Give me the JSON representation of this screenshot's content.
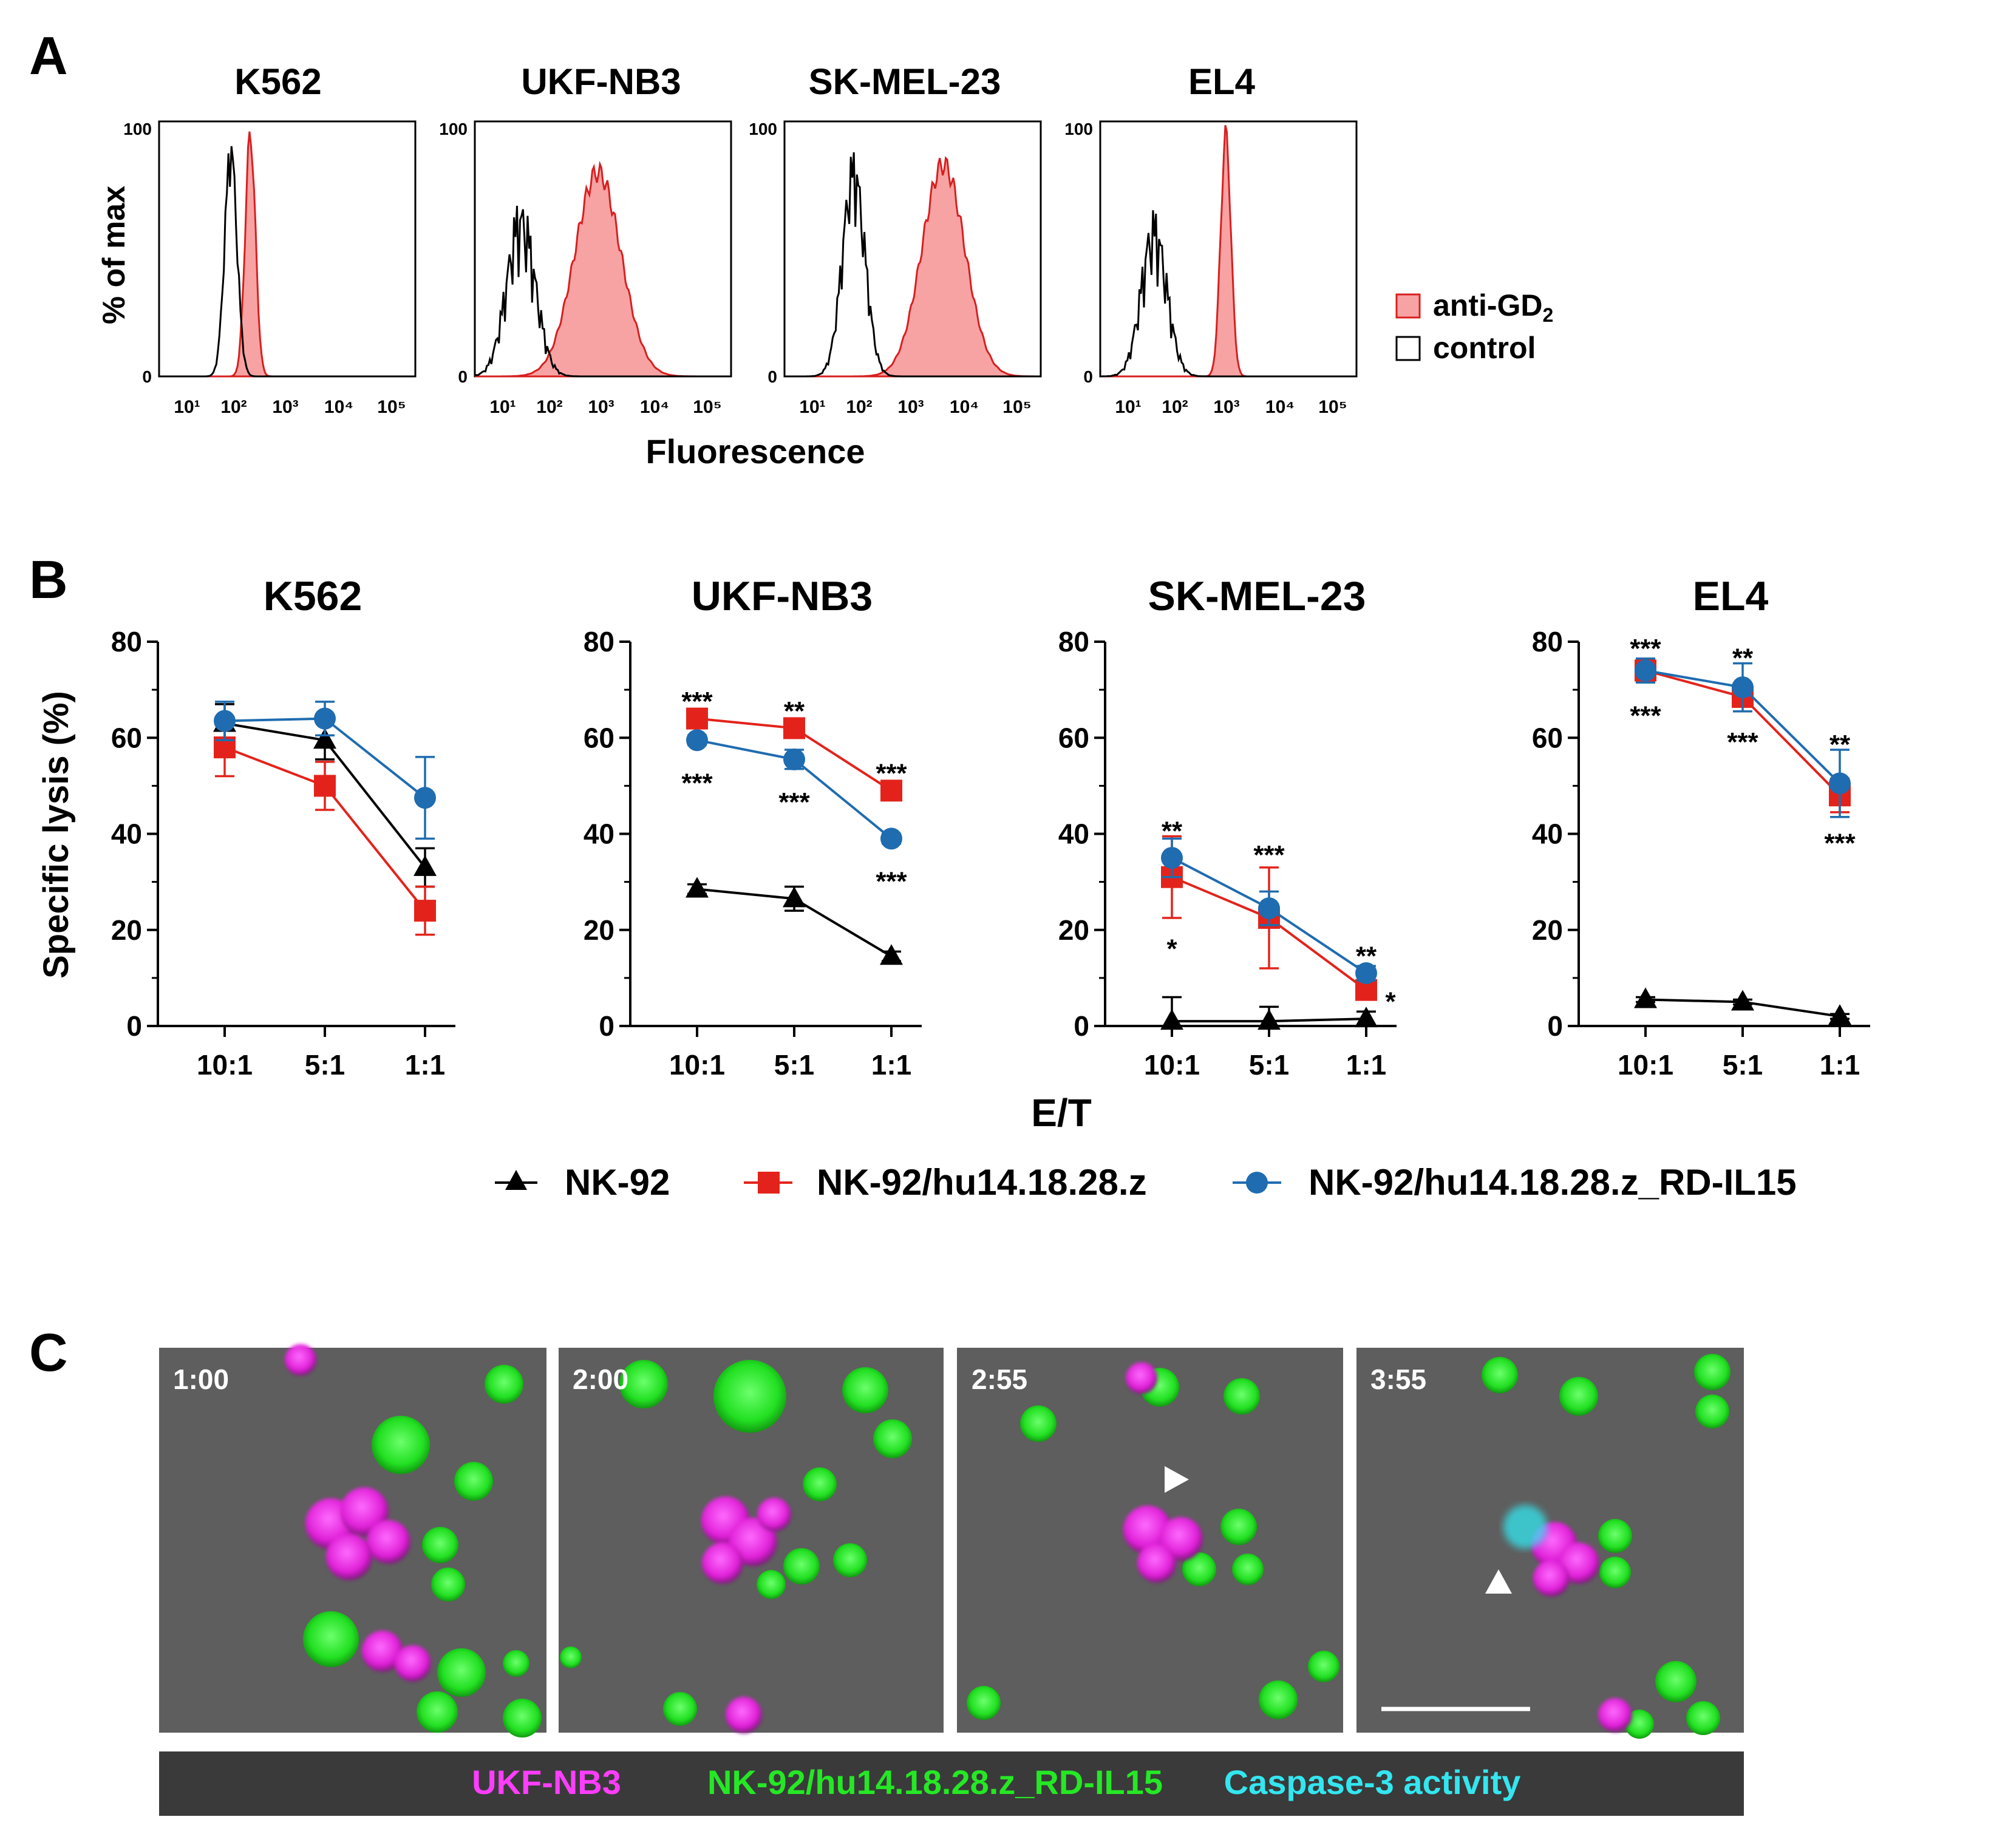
{
  "panel_labels": {
    "a": "A",
    "b": "B",
    "c": "C"
  },
  "colors": {
    "black": "#000000",
    "red": "#e3231b",
    "blue": "#1f6cb0",
    "pink_fill": "#f8a3a3",
    "red_line": "#d81f1f",
    "magenta": "#ff3dff",
    "green": "#25e825",
    "cyan": "#33e6f0",
    "legend_bar": "#3a3a3a"
  },
  "panel_a": {
    "ylabel": "% of max",
    "xlabel": "Fluorescence",
    "ytick_labels": [
      "0",
      "100"
    ],
    "xtick_labels": [
      "10¹",
      "10²",
      "10³",
      "10⁴",
      "10⁵"
    ],
    "legend": {
      "anti": "anti-GD",
      "anti_sub": "2",
      "control": "control"
    },
    "histograms": [
      {
        "title": "K562",
        "control": {
          "center": 1.9,
          "width": 0.12,
          "height": 0.9,
          "noise": 0.15
        },
        "anti": {
          "center": 2.28,
          "width": 0.1,
          "height": 0.97
        }
      },
      {
        "title": "UKF-NB3",
        "control": {
          "center": 1.4,
          "width": 0.28,
          "height": 0.6,
          "noise": 0.35
        },
        "anti": {
          "center": 2.9,
          "width": 0.45,
          "height": 0.82
        }
      },
      {
        "title": "SK-MEL-23",
        "control": {
          "center": 1.85,
          "width": 0.22,
          "height": 0.8,
          "noise": 0.25
        },
        "anti": {
          "center": 3.6,
          "width": 0.42,
          "height": 0.85
        }
      },
      {
        "title": "EL4",
        "control": {
          "center": 1.55,
          "width": 0.25,
          "height": 0.56,
          "noise": 0.35
        },
        "anti": {
          "center": 2.95,
          "width": 0.1,
          "height": 0.97
        }
      }
    ]
  },
  "chart_data": [
    {
      "type": "line",
      "title": "K562",
      "categories": [
        "10:1",
        "5:1",
        "1:1"
      ],
      "ylabel": "Specific lysis  (%)",
      "ylim": [
        0,
        80
      ],
      "series": [
        {
          "name": "NK-92",
          "values": [
            63,
            59.5,
            33
          ],
          "errors": [
            4,
            4,
            4
          ]
        },
        {
          "name": "NK-92/hu14.18.28.z",
          "values": [
            58,
            50,
            24
          ],
          "errors": [
            6,
            5,
            5
          ]
        },
        {
          "name": "NK-92/hu14.18.28.z_RD-IL15",
          "values": [
            63.5,
            64,
            47.5
          ],
          "errors": [
            4,
            3.5,
            8.5
          ]
        }
      ],
      "annotations": []
    },
    {
      "type": "line",
      "title": "UKF-NB3",
      "categories": [
        "10:1",
        "5:1",
        "1:1"
      ],
      "ylabel": "",
      "ylim": [
        0,
        80
      ],
      "series": [
        {
          "name": "NK-92",
          "values": [
            28.5,
            26.5,
            14.5
          ],
          "errors": [
            1,
            2.5,
            1
          ]
        },
        {
          "name": "NK-92/hu14.18.28.z",
          "values": [
            64,
            62,
            49
          ],
          "errors": [
            1,
            1,
            1
          ]
        },
        {
          "name": "NK-92/hu14.18.28.z_RD-IL15",
          "values": [
            59.5,
            55.5,
            39
          ],
          "errors": [
            1,
            2,
            1
          ]
        }
      ],
      "annotations": [
        {
          "i": 0,
          "y": 68,
          "text": "***"
        },
        {
          "i": 0,
          "y": 51,
          "text": "***"
        },
        {
          "i": 1,
          "y": 66,
          "text": "**"
        },
        {
          "i": 1,
          "y": 47,
          "text": "***"
        },
        {
          "i": 2,
          "y": 53,
          "text": "***"
        },
        {
          "i": 2,
          "y": 30.5,
          "text": "***"
        }
      ]
    },
    {
      "type": "line",
      "title": "SK-MEL-23",
      "categories": [
        "10:1",
        "5:1",
        "1:1"
      ],
      "ylabel": "",
      "ylim": [
        0,
        80
      ],
      "series": [
        {
          "name": "NK-92",
          "values": [
            1,
            1,
            1.5
          ],
          "errors": [
            5,
            3,
            1.5
          ]
        },
        {
          "name": "NK-92/hu14.18.28.z",
          "values": [
            31,
            22.5,
            7.5
          ],
          "errors": [
            8.5,
            10.5,
            2
          ]
        },
        {
          "name": "NK-92/hu14.18.28.z_RD-IL15",
          "values": [
            35,
            24.5,
            11
          ],
          "errors": [
            4,
            3.5,
            1.5
          ]
        }
      ],
      "annotations": [
        {
          "i": 0,
          "y": 41,
          "text": "**"
        },
        {
          "i": 0,
          "y": 16.5,
          "text": "*"
        },
        {
          "i": 1,
          "y": 36,
          "text": "***"
        },
        {
          "i": 2,
          "y": 15,
          "text": "**"
        },
        {
          "i": 2,
          "y": 5.5,
          "text": "*",
          "dx": 0.2
        }
      ]
    },
    {
      "type": "line",
      "title": "EL4",
      "categories": [
        "10:1",
        "5:1",
        "1:1"
      ],
      "ylabel": "",
      "ylim": [
        0,
        80
      ],
      "series": [
        {
          "name": "NK-92",
          "values": [
            5.5,
            5,
            2
          ],
          "errors": [
            0.5,
            0.5,
            0.5
          ]
        },
        {
          "name": "NK-92/hu14.18.28.z",
          "values": [
            74,
            68.5,
            48
          ],
          "errors": [
            1.5,
            2,
            3.5
          ]
        },
        {
          "name": "NK-92/hu14.18.28.z_RD-IL15",
          "values": [
            74,
            70.5,
            50.5
          ],
          "errors": [
            2.5,
            5,
            7
          ]
        }
      ],
      "annotations": [
        {
          "i": 0,
          "y": 79,
          "text": "***"
        },
        {
          "i": 0,
          "y": 65,
          "text": "***"
        },
        {
          "i": 1,
          "y": 77,
          "text": "**"
        },
        {
          "i": 1,
          "y": 59.5,
          "text": "***"
        },
        {
          "i": 2,
          "y": 59,
          "text": "**"
        },
        {
          "i": 2,
          "y": 38.5,
          "text": "***"
        }
      ]
    }
  ],
  "panel_b": {
    "xlabel": "E/T",
    "ytick_labels": [
      "0",
      "20",
      "40",
      "60",
      "80"
    ],
    "legend": [
      "NK-92",
      "NK-92/hu14.18.28.z",
      "NK-92/hu14.18.28.z_RD-IL15"
    ]
  },
  "panel_c": {
    "frames": [
      {
        "time": "1:00"
      },
      {
        "time": "2:00"
      },
      {
        "time": "2:55"
      },
      {
        "time": "3:55"
      }
    ],
    "legend": {
      "target": "UKF-NB3",
      "effector": "NK-92/hu14.18.28.z_RD-IL15",
      "caspase": "Caspase-3 activity"
    }
  }
}
